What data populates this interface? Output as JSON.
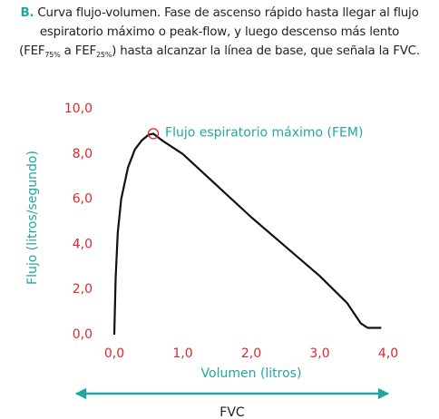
{
  "chart_data": {
    "type": "line",
    "caption": {
      "label": "B.",
      "line1": "Curva flujo-volumen. Fase de ascenso rápido hasta llegar al flujo",
      "line2": "espiratorio máximo o peak-flow, y luego descenso más lento",
      "line3": [
        "(FEF",
        "75%",
        " a FEF",
        "25%",
        ") hasta alcanzar la línea de base, que señala la FVC."
      ]
    },
    "x_label": "Volumen (litros)",
    "y_label": "Flujo (litros/segundo)",
    "annotation": "Flujo espiratorio máximo (FEM)",
    "span_label": "FVC",
    "x": [
      0,
      0.02,
      0.05,
      0.1,
      0.2,
      0.3,
      0.4,
      0.5,
      0.57,
      0.7,
      1.0,
      1.5,
      2.0,
      2.5,
      3.0,
      3.4,
      3.6,
      3.7,
      3.9
    ],
    "values": [
      0,
      2.5,
      4.5,
      6.0,
      7.4,
      8.2,
      8.6,
      8.85,
      8.9,
      8.6,
      8.0,
      6.6,
      5.2,
      3.9,
      2.6,
      1.4,
      0.5,
      0.3,
      0.3
    ],
    "color": "#111111",
    "tick_color": "#e3262d",
    "label_color": "#20a7a4",
    "xlim": [
      0,
      4
    ],
    "ylim": [
      0,
      10
    ],
    "xticks": [
      {
        "value": 0,
        "label": "0,0"
      },
      {
        "value": 1,
        "label": "1,0"
      },
      {
        "value": 2,
        "label": "2,0"
      },
      {
        "value": 3,
        "label": "3,0"
      },
      {
        "value": 4,
        "label": "4,0"
      }
    ],
    "yticks": [
      {
        "value": 0,
        "label": "0,0"
      },
      {
        "value": 2,
        "label": "2,0"
      },
      {
        "value": 4,
        "label": "4,0"
      },
      {
        "value": 6,
        "label": "6,0"
      },
      {
        "value": 8,
        "label": "8,0"
      },
      {
        "value": 10,
        "label": "10,0"
      }
    ],
    "grid": false
  }
}
